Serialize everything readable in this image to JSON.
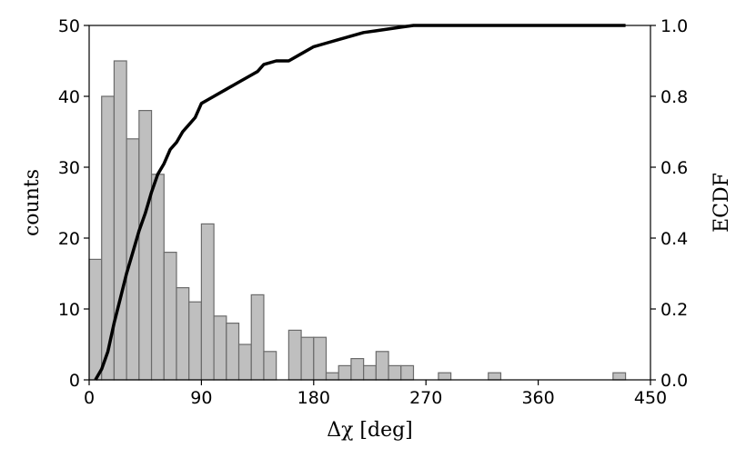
{
  "chart_data": {
    "type": "bar",
    "title": "",
    "xlabel": "Δχ [deg]",
    "ylabel": "counts",
    "y2label": "ECDF",
    "xlim": [
      0,
      450
    ],
    "ylim": [
      0,
      50
    ],
    "y2lim": [
      0,
      1
    ],
    "xticks": [
      "0",
      "90",
      "180",
      "270",
      "360",
      "450"
    ],
    "yticks": [
      "0",
      "10",
      "20",
      "30",
      "40",
      "50"
    ],
    "y2ticks": [
      "0.0",
      "0.2",
      "0.4",
      "0.6",
      "0.8",
      "1.0"
    ],
    "grid": false,
    "histogram": {
      "bin_width": 10,
      "bins": [
        {
          "x0": 0,
          "count": 17
        },
        {
          "x0": 10,
          "count": 40
        },
        {
          "x0": 20,
          "count": 45
        },
        {
          "x0": 30,
          "count": 34
        },
        {
          "x0": 40,
          "count": 38
        },
        {
          "x0": 50,
          "count": 29
        },
        {
          "x0": 60,
          "count": 18
        },
        {
          "x0": 70,
          "count": 13
        },
        {
          "x0": 80,
          "count": 11
        },
        {
          "x0": 90,
          "count": 22
        },
        {
          "x0": 100,
          "count": 9
        },
        {
          "x0": 110,
          "count": 8
        },
        {
          "x0": 120,
          "count": 5
        },
        {
          "x0": 130,
          "count": 12
        },
        {
          "x0": 140,
          "count": 4
        },
        {
          "x0": 150,
          "count": 0
        },
        {
          "x0": 160,
          "count": 7
        },
        {
          "x0": 170,
          "count": 6
        },
        {
          "x0": 180,
          "count": 6
        },
        {
          "x0": 190,
          "count": 1
        },
        {
          "x0": 200,
          "count": 2
        },
        {
          "x0": 210,
          "count": 3
        },
        {
          "x0": 220,
          "count": 2
        },
        {
          "x0": 230,
          "count": 4
        },
        {
          "x0": 240,
          "count": 2
        },
        {
          "x0": 250,
          "count": 2
        },
        {
          "x0": 280,
          "count": 1
        },
        {
          "x0": 320,
          "count": 1
        },
        {
          "x0": 420,
          "count": 1
        }
      ]
    },
    "ecdf": {
      "x": [
        5,
        10,
        15,
        20,
        25,
        30,
        35,
        40,
        45,
        50,
        55,
        60,
        65,
        70,
        75,
        80,
        85,
        90,
        95,
        100,
        110,
        120,
        130,
        135,
        140,
        150,
        160,
        170,
        180,
        190,
        200,
        210,
        220,
        230,
        240,
        250,
        260,
        280,
        320,
        360,
        430
      ],
      "y": [
        0.0,
        0.03,
        0.08,
        0.16,
        0.23,
        0.3,
        0.36,
        0.42,
        0.47,
        0.53,
        0.58,
        0.61,
        0.65,
        0.67,
        0.7,
        0.72,
        0.74,
        0.78,
        0.79,
        0.8,
        0.82,
        0.84,
        0.86,
        0.87,
        0.89,
        0.9,
        0.9,
        0.92,
        0.94,
        0.95,
        0.96,
        0.97,
        0.98,
        0.985,
        0.99,
        0.995,
        1.0,
        1.0,
        1.0,
        1.0,
        1.0
      ]
    }
  }
}
